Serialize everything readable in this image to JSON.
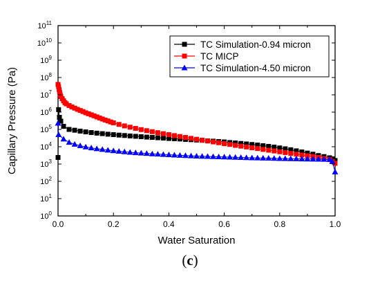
{
  "panel": {
    "open": "(",
    "letter": "c",
    "close": ")"
  },
  "chart_data": {
    "type": "scatter",
    "title": "",
    "xlabel": "Water Saturation",
    "ylabel": "Capillary Pressure (Pa)",
    "xlim": [
      0,
      1
    ],
    "ylim": [
      1,
      100000000000
    ],
    "yscale": "log",
    "x_ticks": [
      0.0,
      0.2,
      0.4,
      0.6,
      0.8,
      1.0
    ],
    "x_tick_labels": [
      "0.0",
      "0.2",
      "0.4",
      "0.6",
      "0.8",
      "1.0"
    ],
    "y_ticks": [
      1,
      10,
      100,
      1000,
      10000,
      100000,
      1000000,
      10000000,
      100000000,
      1000000000,
      10000000000,
      100000000000
    ],
    "y_tick_base": "10",
    "y_tick_exponents": [
      "0",
      "1",
      "2",
      "3",
      "4",
      "5",
      "6",
      "7",
      "8",
      "9",
      "10",
      "11"
    ],
    "grid": false,
    "legend_position": "top-right",
    "series": [
      {
        "name": "TC Simulation-0.94 micron",
        "color": "#000000",
        "marker": "square",
        "x": [
          0.0,
          0.002,
          0.005,
          0.01,
          0.02,
          0.04,
          0.06,
          0.08,
          0.1,
          0.12,
          0.14,
          0.16,
          0.18,
          0.2,
          0.22,
          0.24,
          0.26,
          0.28,
          0.3,
          0.32,
          0.34,
          0.36,
          0.38,
          0.4,
          0.42,
          0.44,
          0.46,
          0.48,
          0.5,
          0.52,
          0.54,
          0.56,
          0.58,
          0.6,
          0.62,
          0.64,
          0.66,
          0.68,
          0.7,
          0.72,
          0.74,
          0.76,
          0.78,
          0.8,
          0.82,
          0.84,
          0.86,
          0.88,
          0.9,
          0.92,
          0.94,
          0.96,
          0.98,
          0.99,
          1.0
        ],
        "y": [
          2400,
          1400000,
          500000,
          300000,
          150000,
          100000,
          90000,
          80000,
          72000,
          66000,
          61000,
          57000,
          53000,
          50000,
          47000,
          44500,
          42000,
          40000,
          38000,
          36000,
          34500,
          33000,
          31500,
          30000,
          29000,
          28000,
          26500,
          25500,
          24500,
          23500,
          22000,
          21000,
          20000,
          19000,
          17500,
          16500,
          15500,
          14500,
          13500,
          12500,
          11500,
          10500,
          9500,
          8500,
          7600,
          6700,
          5800,
          5000,
          4300,
          3700,
          3100,
          2700,
          2300,
          2000,
          1600
        ]
      },
      {
        "name": "TC MICP",
        "color": "#ff0000",
        "marker": "square",
        "x": [
          0.0,
          0.002,
          0.004,
          0.006,
          0.008,
          0.01,
          0.015,
          0.02,
          0.025,
          0.03,
          0.04,
          0.05,
          0.06,
          0.07,
          0.08,
          0.09,
          0.1,
          0.11,
          0.12,
          0.13,
          0.14,
          0.15,
          0.16,
          0.17,
          0.18,
          0.19,
          0.2,
          0.22,
          0.24,
          0.26,
          0.28,
          0.3,
          0.32,
          0.34,
          0.36,
          0.38,
          0.4,
          0.42,
          0.44,
          0.46,
          0.48,
          0.5,
          0.52,
          0.54,
          0.56,
          0.58,
          0.6,
          0.62,
          0.64,
          0.66,
          0.68,
          0.7,
          0.72,
          0.74,
          0.76,
          0.78,
          0.8,
          0.82,
          0.84,
          0.86,
          0.88,
          0.9,
          0.92,
          0.94,
          0.96,
          0.98,
          0.99,
          1.0
        ],
        "y": [
          40000000,
          30000000,
          20000000,
          14000000,
          10000000,
          8000000,
          6000000,
          4500000,
          3500000,
          3000000,
          2400000,
          2000000,
          1700000,
          1450000,
          1250000,
          1080000,
          920000,
          800000,
          700000,
          610000,
          530000,
          460000,
          400000,
          350000,
          310000,
          270000,
          240000,
          195000,
          160000,
          135000,
          115000,
          98000,
          85000,
          74000,
          65000,
          57000,
          50000,
          44000,
          39000,
          34500,
          30500,
          27000,
          24000,
          21500,
          19000,
          17000,
          15000,
          13500,
          12000,
          10800,
          9700,
          8700,
          7800,
          7000,
          6300,
          5700,
          5100,
          4600,
          4100,
          3700,
          3300,
          3000,
          2700,
          2400,
          2100,
          1800,
          1400,
          1100
        ]
      },
      {
        "name": "TC Simulation-4.50 micron",
        "color": "#0000ff",
        "marker": "triangle",
        "x": [
          0.0,
          0.002,
          0.02,
          0.04,
          0.06,
          0.08,
          0.1,
          0.12,
          0.14,
          0.16,
          0.18,
          0.2,
          0.22,
          0.24,
          0.26,
          0.28,
          0.3,
          0.32,
          0.34,
          0.36,
          0.38,
          0.4,
          0.42,
          0.44,
          0.46,
          0.48,
          0.5,
          0.52,
          0.54,
          0.56,
          0.58,
          0.6,
          0.62,
          0.64,
          0.66,
          0.68,
          0.7,
          0.72,
          0.74,
          0.76,
          0.78,
          0.8,
          0.82,
          0.84,
          0.86,
          0.88,
          0.9,
          0.92,
          0.94,
          0.96,
          0.98,
          0.99,
          1.0
        ],
        "y": [
          230000,
          50000,
          28000,
          18000,
          14000,
          11500,
          9800,
          8600,
          7700,
          7000,
          6400,
          5900,
          5500,
          5100,
          4800,
          4500,
          4300,
          4100,
          3900,
          3750,
          3600,
          3450,
          3300,
          3200,
          3100,
          3000,
          2900,
          2820,
          2750,
          2680,
          2620,
          2560,
          2500,
          2450,
          2400,
          2350,
          2300,
          2260,
          2220,
          2180,
          2140,
          2100,
          2070,
          2040,
          2010,
          1980,
          1950,
          1920,
          1900,
          1880,
          1850,
          1400,
          350
        ]
      }
    ]
  }
}
